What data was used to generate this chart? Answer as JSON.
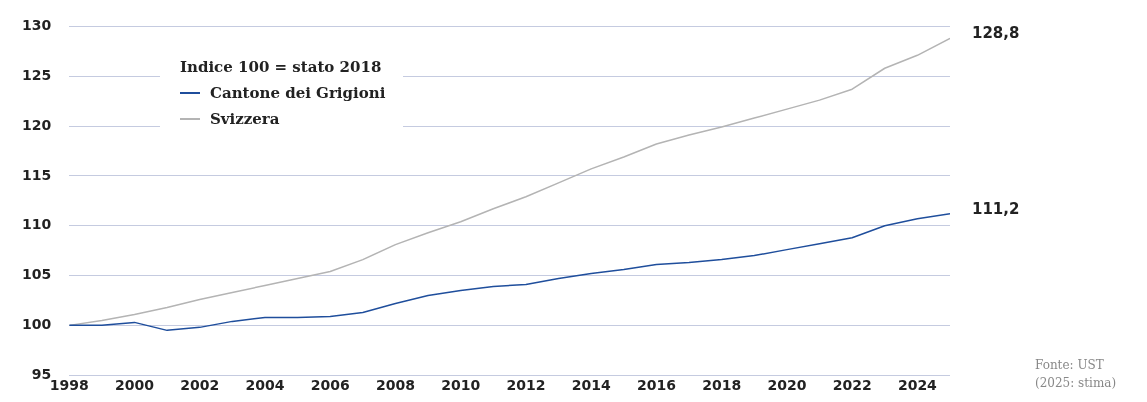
{
  "chart_data": {
    "type": "line",
    "legend_title": "Indice 100 = stato 2018",
    "legend": "top left",
    "grid": "y",
    "marker": "none",
    "line_style": "solid",
    "x": [
      1998,
      1999,
      2000,
      2001,
      2002,
      2003,
      2004,
      2005,
      2006,
      2007,
      2008,
      2009,
      2010,
      2011,
      2012,
      2013,
      2014,
      2015,
      2016,
      2017,
      2018,
      2019,
      2020,
      2021,
      2022,
      2023,
      2024,
      2025
    ],
    "xlim": [
      1998,
      2025
    ],
    "xticks": [
      1998,
      2000,
      2002,
      2004,
      2006,
      2008,
      2010,
      2012,
      2014,
      2016,
      2018,
      2020,
      2022,
      2024
    ],
    "ylim": [
      95,
      130
    ],
    "yticks": [
      95,
      100,
      105,
      110,
      115,
      120,
      125,
      130
    ],
    "series": [
      {
        "name": "Cantone dei Grigioni",
        "color": "#1f4e9c",
        "values": [
          100,
          100,
          100.3,
          99.5,
          99.8,
          100.4,
          100.8,
          100.8,
          100.9,
          101.3,
          102.2,
          103,
          103.5,
          103.9,
          104.1,
          104.7,
          105.2,
          105.6,
          106.1,
          106.3,
          106.6,
          107,
          107.6,
          108.2,
          108.8,
          110,
          110.7,
          111.2
        ],
        "value_labels": [
          null,
          null,
          null,
          null,
          null,
          null,
          null,
          null,
          null,
          null,
          null,
          null,
          null,
          null,
          null,
          null,
          null,
          null,
          null,
          null,
          null,
          null,
          null,
          null,
          null,
          null,
          null,
          "111,2"
        ]
      },
      {
        "name": "Svizzera",
        "color": "#b4b4b4",
        "values": [
          100,
          100.5,
          101.1,
          101.8,
          102.6,
          103.3,
          104,
          104.7,
          105.4,
          106.6,
          108.1,
          109.3,
          110.4,
          111.7,
          112.9,
          114.3,
          115.7,
          116.9,
          118.2,
          119.1,
          119.9,
          120.8,
          121.7,
          122.6,
          123.7,
          125.8,
          127.1,
          128.8
        ],
        "value_labels": [
          null,
          null,
          null,
          null,
          null,
          null,
          null,
          null,
          null,
          null,
          null,
          null,
          null,
          null,
          null,
          null,
          null,
          null,
          null,
          null,
          null,
          null,
          null,
          null,
          null,
          null,
          null,
          "128,8"
        ]
      }
    ],
    "annotations": [
      "Fonte: UST",
      "(2025: stima)"
    ]
  }
}
